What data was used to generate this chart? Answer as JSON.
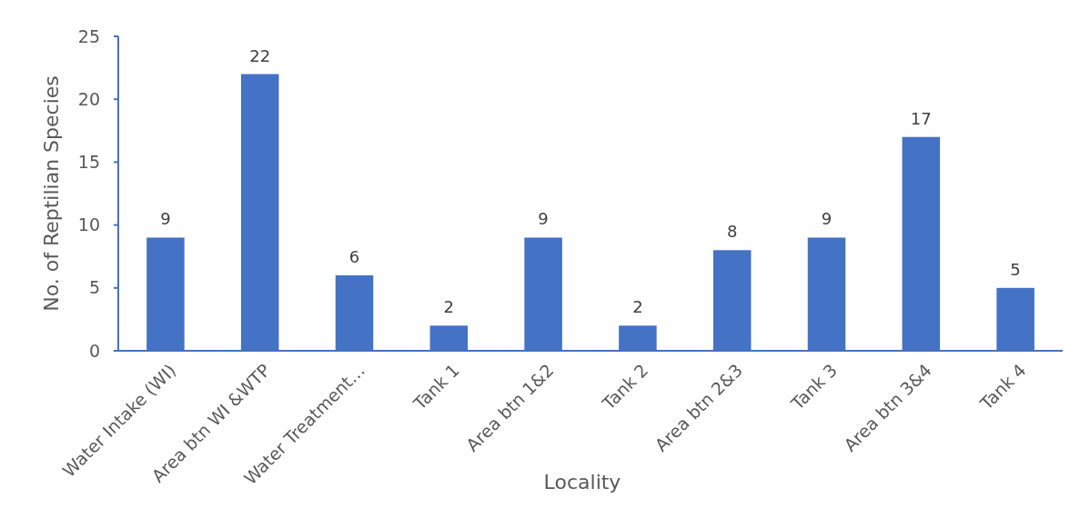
{
  "chart_data": {
    "type": "bar",
    "xlabel": "Locality",
    "ylabel": "No. of Reptilian Species",
    "categories": [
      "Water Intake (WI)",
      "Area btn WI &WTP",
      "Water Treatment…",
      "Tank 1",
      "Area btn 1&2",
      "Tank 2",
      "Area btn 2&3",
      "Tank 3",
      "Area btn 3&4",
      "Tank 4"
    ],
    "values": [
      9,
      22,
      6,
      2,
      9,
      2,
      8,
      9,
      17,
      5
    ],
    "color": "#4472c4",
    "ylim": [
      0,
      25
    ],
    "yticks": [
      0,
      5,
      10,
      15,
      20,
      25
    ],
    "data_labels": true
  }
}
